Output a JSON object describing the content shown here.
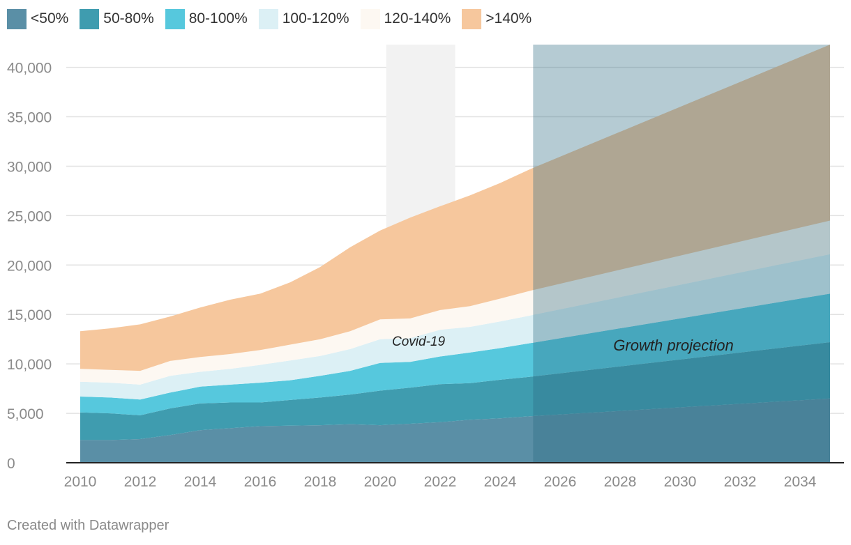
{
  "chart_data": {
    "type": "area",
    "stacked": true,
    "title": "",
    "xlabel": "",
    "ylabel": "",
    "x": [
      2010,
      2011,
      2012,
      2013,
      2014,
      2015,
      2016,
      2017,
      2018,
      2019,
      2020,
      2021,
      2022,
      2023,
      2024,
      2025,
      2035
    ],
    "xlim": [
      2010,
      2035
    ],
    "ylim": [
      0,
      42300
    ],
    "x_ticks": [
      "2010",
      "2012",
      "2014",
      "2016",
      "2018",
      "2020",
      "2022",
      "2024",
      "2026",
      "2028",
      "2030",
      "2032",
      "2034"
    ],
    "y_ticks": [
      "0",
      "5,000",
      "10,000",
      "15,000",
      "20,000",
      "25,000",
      "30,000",
      "35,000",
      "40,000"
    ],
    "legend": "top-left",
    "series": [
      {
        "name": "<50%",
        "color": "#5a8fa6",
        "values": [
          2300,
          2300,
          2400,
          2800,
          3300,
          3500,
          3700,
          3750,
          3800,
          3900,
          3800,
          3950,
          4100,
          4350,
          4500,
          4700,
          6500
        ]
      },
      {
        "name": "50-80%",
        "color": "#3f9caf",
        "values": [
          2800,
          2700,
          2400,
          2700,
          2700,
          2600,
          2400,
          2600,
          2800,
          3000,
          3500,
          3650,
          3850,
          3700,
          3900,
          4000,
          5700
        ]
      },
      {
        "name": "80-100%",
        "color": "#56c8dd",
        "values": [
          1600,
          1600,
          1600,
          1600,
          1700,
          1800,
          2000,
          2000,
          2200,
          2400,
          2800,
          2600,
          2800,
          3100,
          3200,
          3400,
          4900
        ]
      },
      {
        "name": "100-120%",
        "color": "#dcf0f5",
        "values": [
          1500,
          1500,
          1500,
          1700,
          1500,
          1600,
          1800,
          2000,
          2000,
          2200,
          2400,
          2400,
          2700,
          2600,
          2700,
          2800,
          4000
        ]
      },
      {
        "name": "120-140%",
        "color": "#fdf8f2",
        "values": [
          1300,
          1300,
          1400,
          1500,
          1500,
          1500,
          1500,
          1600,
          1700,
          1800,
          2000,
          2000,
          2000,
          2100,
          2300,
          2500,
          3400
        ]
      },
      {
        "name": ">140%",
        "color": "#f6c79d",
        "values": [
          3800,
          4200,
          4700,
          4500,
          5000,
          5500,
          5700,
          6300,
          7300,
          8500,
          9000,
          10200,
          10500,
          11200,
          11700,
          12300,
          17800
        ]
      }
    ],
    "annotations": [
      {
        "label": "Covid-19",
        "x_range": [
          2020.2,
          2022.5
        ]
      },
      {
        "label": "Growth projection",
        "x_range": [
          2025.1,
          2035
        ]
      }
    ],
    "credit": "Created with Datawrapper"
  }
}
